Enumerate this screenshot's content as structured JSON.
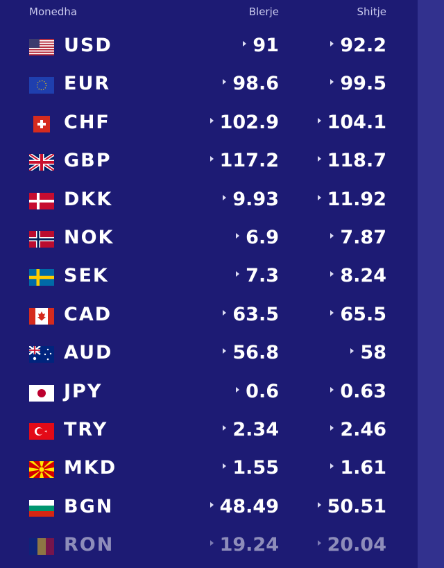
{
  "header": {
    "currency": "Monedha",
    "buy": "Blerje",
    "sell": "Shitje"
  },
  "rows": [
    {
      "code": "USD",
      "buy": "91",
      "sell": "92.2",
      "flag": "us-flag-icon"
    },
    {
      "code": "EUR",
      "buy": "98.6",
      "sell": "99.5",
      "flag": "eu-flag-icon"
    },
    {
      "code": "CHF",
      "buy": "102.9",
      "sell": "104.1",
      "flag": "ch-flag-icon"
    },
    {
      "code": "GBP",
      "buy": "117.2",
      "sell": "118.7",
      "flag": "gb-flag-icon"
    },
    {
      "code": "DKK",
      "buy": "9.93",
      "sell": "11.92",
      "flag": "dk-flag-icon"
    },
    {
      "code": "NOK",
      "buy": "6.9",
      "sell": "7.87",
      "flag": "no-flag-icon"
    },
    {
      "code": "SEK",
      "buy": "7.3",
      "sell": "8.24",
      "flag": "se-flag-icon"
    },
    {
      "code": "CAD",
      "buy": "63.5",
      "sell": "65.5",
      "flag": "ca-flag-icon"
    },
    {
      "code": "AUD",
      "buy": "56.8",
      "sell": "58",
      "flag": "au-flag-icon"
    },
    {
      "code": "JPY",
      "buy": "0.6",
      "sell": "0.63",
      "flag": "jp-flag-icon"
    },
    {
      "code": "TRY",
      "buy": "2.34",
      "sell": "2.46",
      "flag": "tr-flag-icon"
    },
    {
      "code": "MKD",
      "buy": "1.55",
      "sell": "1.61",
      "flag": "mk-flag-icon"
    },
    {
      "code": "BGN",
      "buy": "48.49",
      "sell": "50.51",
      "flag": "bg-flag-icon"
    },
    {
      "code": "RON",
      "buy": "19.24",
      "sell": "20.04",
      "flag": "ro-flag-icon"
    }
  ]
}
